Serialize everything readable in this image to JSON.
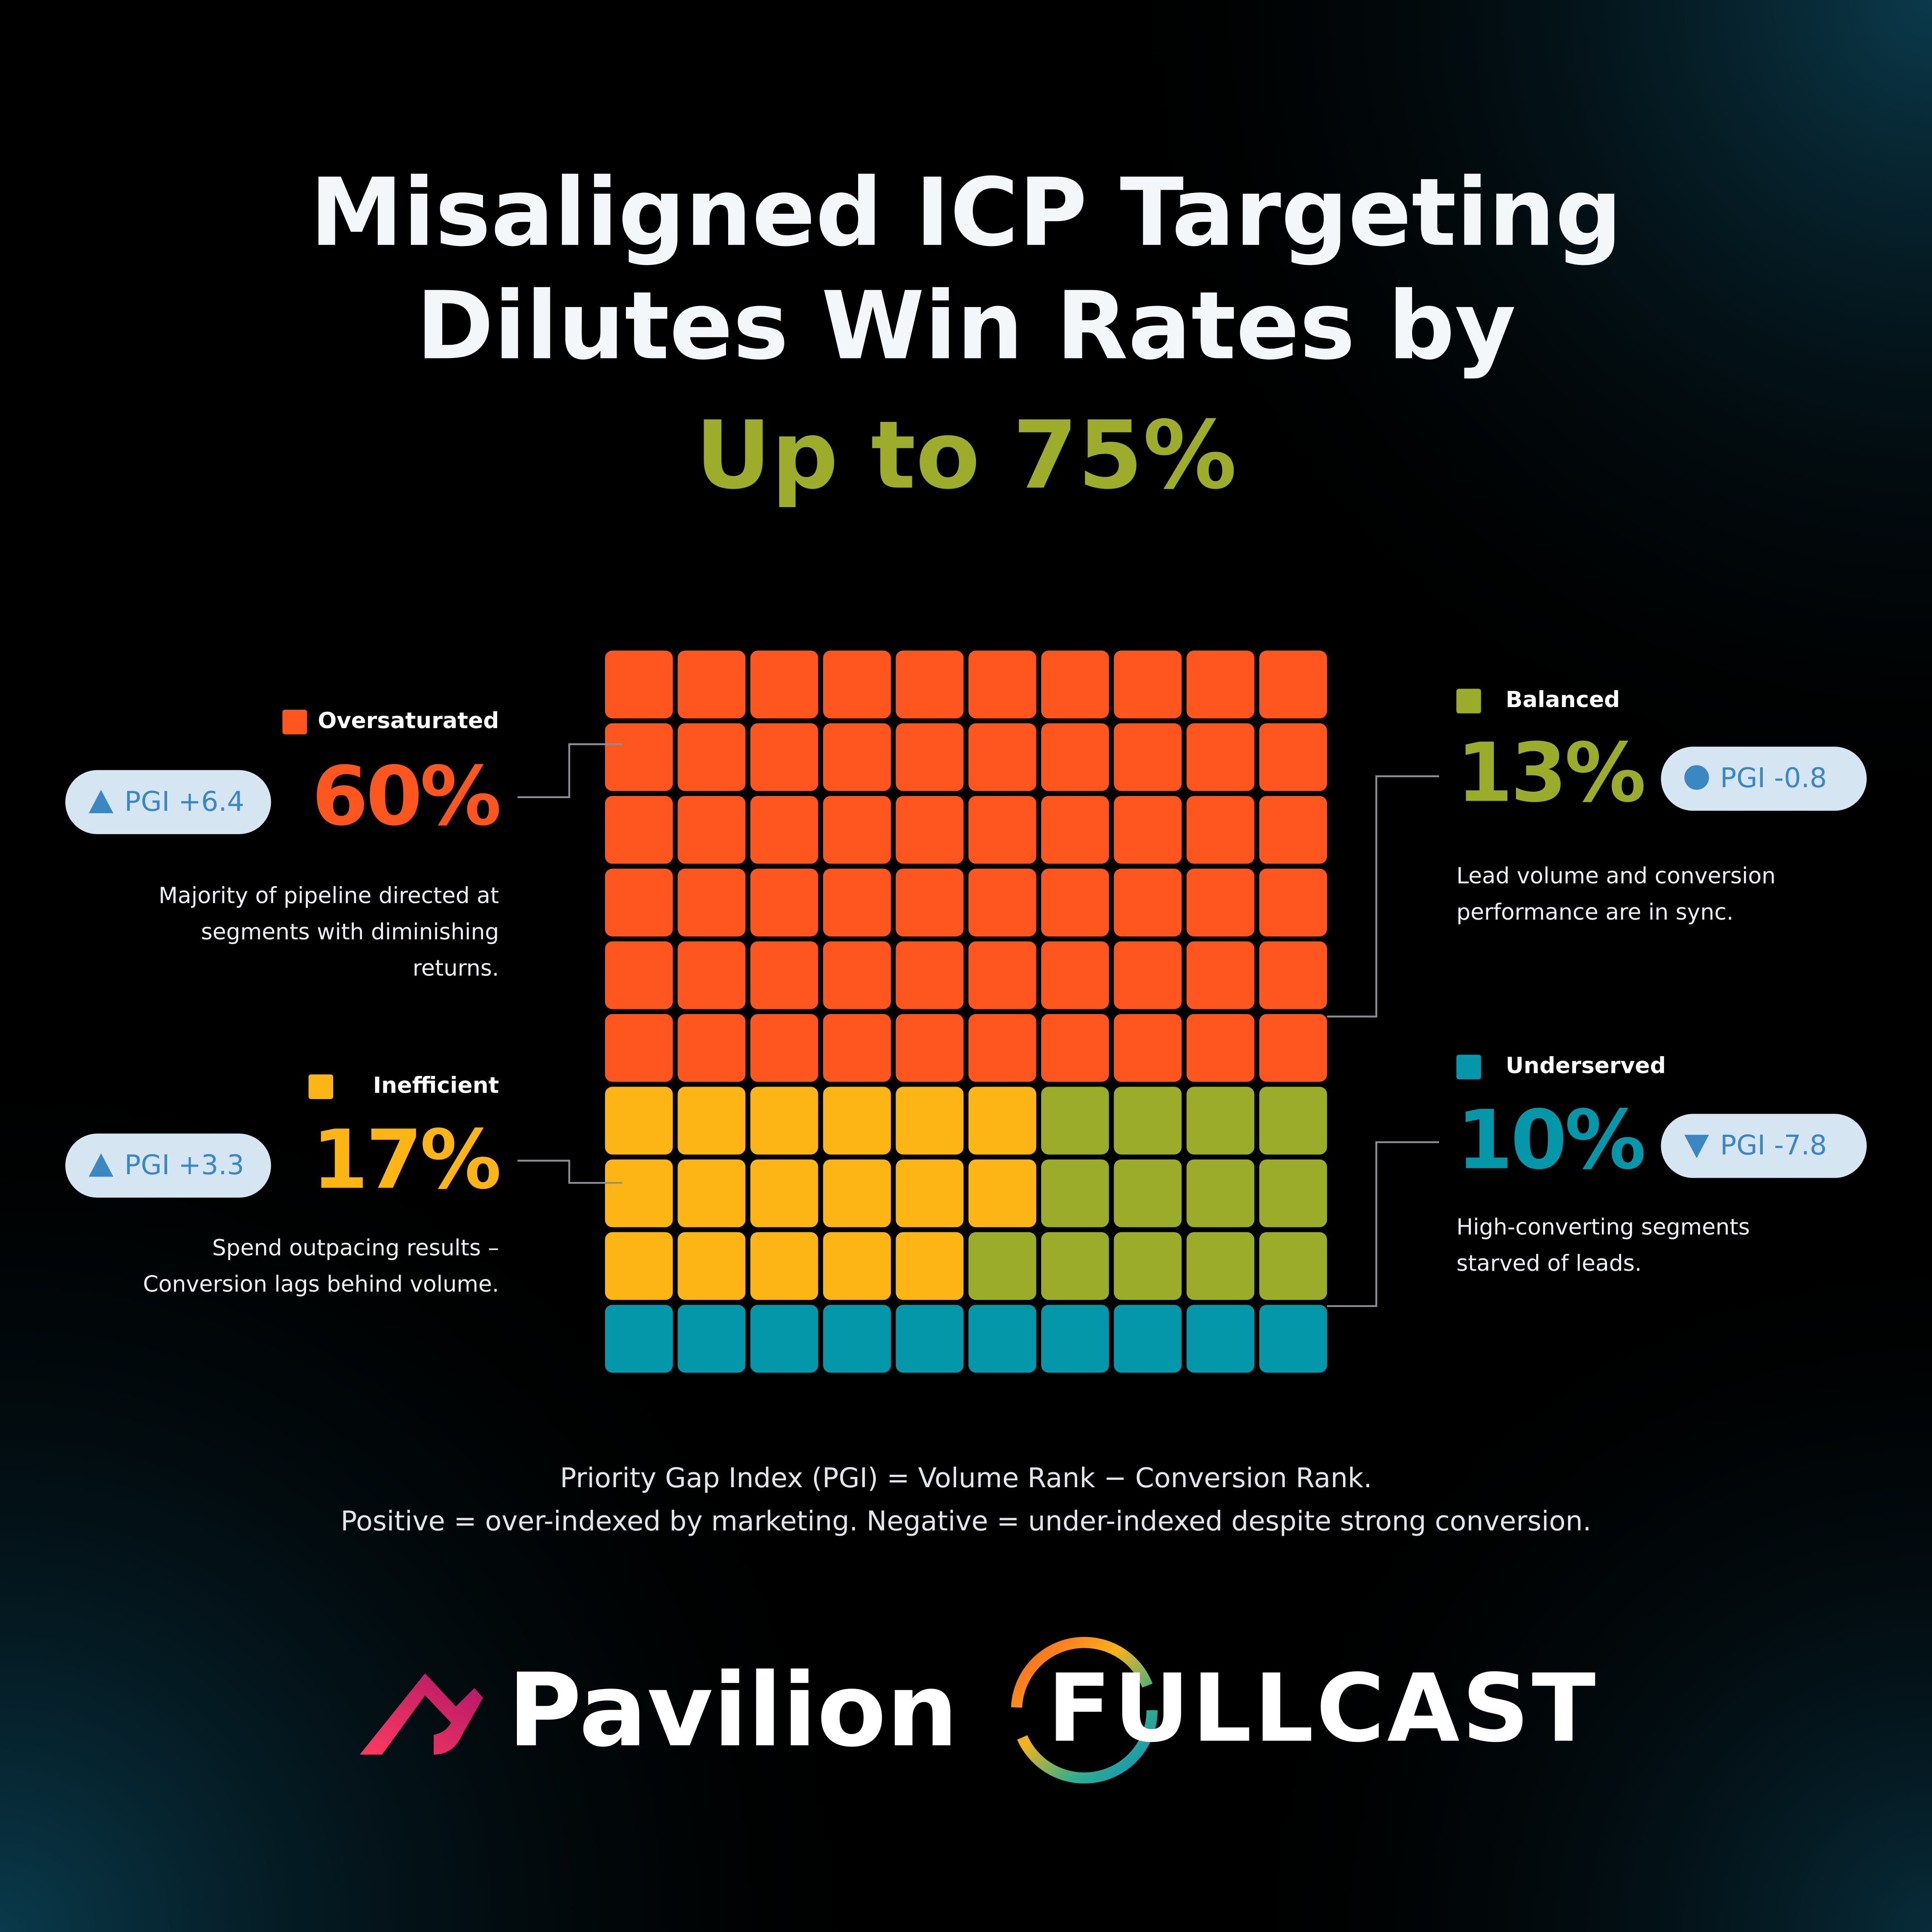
{
  "chart_data": {
    "type": "waffle",
    "title": [
      "Misaligned ICP Targeting",
      "Dilutes Win Rates by"
    ],
    "highlight": "Up to 75%",
    "highlight_color": "#9dac2a",
    "categories": [
      "Oversaturated",
      "Inefficient",
      "Balanced",
      "Underserved"
    ],
    "values": [
      60,
      17,
      13,
      10
    ],
    "value_labels": [
      "60%",
      "17%",
      "13%",
      "10%"
    ],
    "colors": [
      "#ff5620",
      "#fdb515",
      "#9bab2a",
      "#0497aa"
    ],
    "pgi": [
      "PGI +6.4",
      "PGI +3.3",
      "PGI -0.8",
      "PGI -7.8"
    ],
    "pgi_icons": [
      "up",
      "up",
      "dot",
      "down"
    ],
    "descriptions": [
      [
        "Majority of pipeline directed at",
        "segments with diminishing",
        "returns."
      ],
      [
        "Spend outpacing results –",
        "Conversion lags behind volume."
      ],
      [
        "Lead volume and conversion",
        "performance are in sync."
      ],
      [
        "High-converting segments",
        "starved of leads."
      ]
    ],
    "footnote": [
      "Priority Gap Index (PGI) = Volume Rank − Conversion Rank.",
      "Positive = over-indexed by marketing.  Negative = under-indexed despite strong conversion."
    ],
    "logos": [
      "Pavilion",
      "FULLCAST"
    ]
  }
}
